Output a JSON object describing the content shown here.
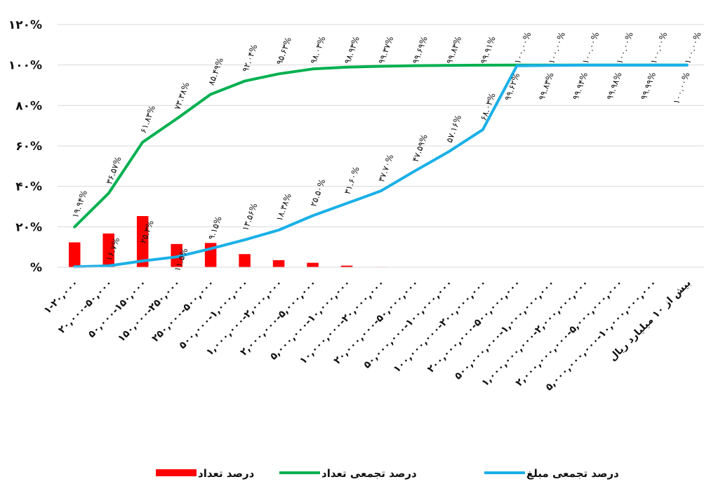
{
  "chart_data": {
    "type": "bar",
    "ylim": [
      0,
      120
    ],
    "y_ticks": [
      "%",
      "۲۰%",
      "۴۰%",
      "۶۰%",
      "۸۰%",
      "۱۰۰%",
      "۱۲۰%"
    ],
    "grid": true,
    "legend_position": "bottom",
    "categories": [
      "۱-۲۰,۰۰۰",
      "۲۰,۰۰۰-۵۰,۰۰۰",
      "۵۰,۰۰۰-۱۵۰,۰۰۰",
      "۱۵۰,۰۰۰-۲۵۰,۰۰۰",
      "۲۵۰,۰۰۰-۵۰۰,۰۰۰",
      "۵۰۰,۰۰۰-۱,۰۰۰,۰۰۰",
      "۱,۰۰۰,۰۰۰-۲,۰۰۰,۰۰۰",
      "۲,۰۰۰,۰۰۰-۵,۰۰۰,۰۰۰",
      "۵,۰۰۰,۰۰۰-۱۰,۰۰۰,۰۰۰",
      "۱۰,۰۰۰,۰۰۰-۲۰,۰۰۰,۰۰۰",
      "۲۰,۰۰۰,۰۰۰-۵۰,۰۰۰,۰۰۰",
      "۵۰,۰۰۰,۰۰۰-۱۰۰,۰۰۰,۰۰۰",
      "۱۰۰,۰۰۰,۰۰۰-۲۰۰,۰۰۰,۰۰۰",
      "۲۰۰,۰۰۰,۰۰۰-۵۰۰,۰۰۰,۰۰۰",
      "۵۰۰,۰۰۰,۰۰۰-۱,۰۰۰,۰۰۰,۰۰۰",
      "۱,۰۰۰,۰۰۰,۰۰۰-۲,۰۰۰,۰۰۰,۰۰۰",
      "۲,۰۰۰,۰۰۰,۰۰۰-۵,۰۰۰,۰۰۰,۰۰۰",
      "۵,۰۰۰,۰۰۰,۰۰۰-۱۰,۰۰۰,۰۰۰,۰۰۰",
      "بیش از ۱۰ میلیارد ریال"
    ],
    "series": [
      {
        "name": "درصد تعداد",
        "type": "bar",
        "color": "#ff0000",
        "values": [
          12.3,
          16.7,
          25.3,
          11.5,
          12.0,
          6.5,
          3.5,
          2.2,
          0.8,
          0.2,
          0.1,
          0.05,
          0.02,
          0.01,
          0.01,
          0,
          0,
          0,
          0
        ],
        "labels": [
          "",
          "۱۶.۷%",
          "۲۵.۳%",
          "۱۱.۵%",
          "",
          "",
          "",
          "",
          "",
          "",
          "",
          "",
          "",
          "",
          "",
          "",
          "",
          "",
          ""
        ]
      },
      {
        "name": "درصد تجمعی تعداد",
        "type": "line",
        "color": "#00b050",
        "values": [
          19.94,
          36.57,
          61.83,
          73.38,
          85.49,
          92.04,
          95.63,
          98.03,
          98.93,
          99.37,
          99.69,
          99.83,
          99.91,
          100.0,
          100.0,
          100.0,
          100.0,
          100.0,
          100.0
        ],
        "labels": [
          "۱۹.۹۴%",
          "۳۶.۵۷%",
          "۶۱.۸۳%",
          "۷۳.۳۸%",
          "۸۵.۴۹%",
          "۹۲.۰۴%",
          "۹۵.۶۳%",
          "۹۸.۰۳%",
          "۹۸.۹۳%",
          "۹۹.۳۷%",
          "۹۹.۶۹%",
          "۹۹.۸۳%",
          "۹۹.۹۱%",
          "۱۰۰.۰۰%",
          "۱۰۰.۰۰%",
          "۱۰۰.۰۰%",
          "۱۰۰.۰۰%",
          "۱۰۰.۰۰%",
          "۱۰۰.۰۰%"
        ]
      },
      {
        "name": "درصد تجمعی مبلغ",
        "type": "line",
        "color": "#1ab0e8",
        "values": [
          0.26,
          0.7,
          3.13,
          5.13,
          9.15,
          13.56,
          18.38,
          25.5,
          31.6,
          37.7,
          47.59,
          57.16,
          68.03,
          99.62,
          99.83,
          99.94,
          99.98,
          99.99,
          100.0
        ],
        "labels": [
          "",
          "",
          "",
          "",
          "۹.۱۵%",
          "۱۳.۵۶%",
          "۱۸.۳۸%",
          "۲۵.۵۰%",
          "۳۱.۶۰%",
          "۳۷.۷۰%",
          "۴۷.۵۹%",
          "۵۷.۱۶%",
          "۶۸.۰۳%",
          "۹۹.۶۲%",
          "۹۹.۸۳%",
          "۹۹.۹۴%",
          "۹۹.۹۸%",
          "۹۹.۹۹%",
          "۱۰۰.۰۰%"
        ]
      }
    ]
  }
}
